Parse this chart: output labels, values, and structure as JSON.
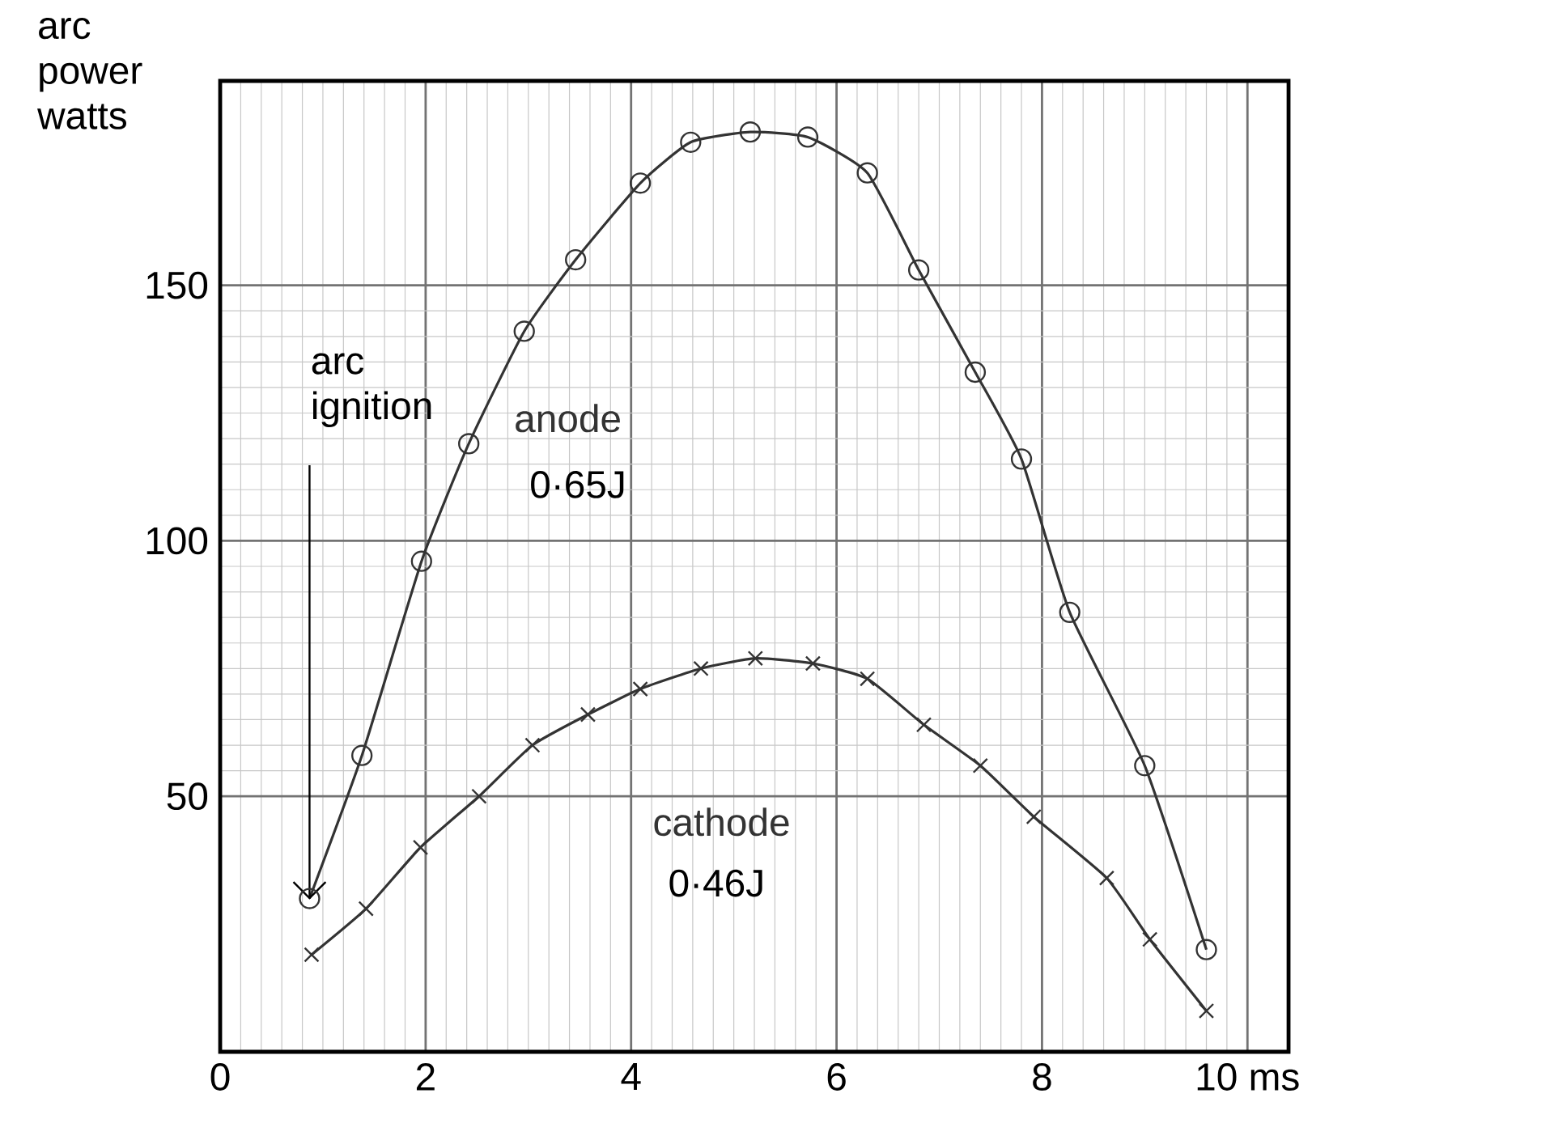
{
  "chart_data": {
    "type": "line",
    "ylabel": "arc power watts",
    "xlim": [
      0,
      10.4
    ],
    "ylim": [
      0,
      190
    ],
    "xticks": [
      0,
      2,
      4,
      6,
      8,
      {
        "value": 10,
        "label": "10 ms"
      }
    ],
    "yticks": [
      50,
      100,
      150
    ],
    "grid": true,
    "legend": false,
    "line_style": "solid",
    "series": [
      {
        "name": "anode",
        "color": "#333333",
        "marker": "circle",
        "x": [
          0.87,
          1.38,
          1.96,
          2.42,
          2.96,
          3.46,
          4.09,
          4.58,
          5.16,
          5.72,
          6.3,
          6.8,
          7.35,
          7.8,
          8.27,
          9.0,
          9.6
        ],
        "values": [
          30,
          58,
          96,
          119,
          141,
          155,
          170,
          178,
          180,
          179,
          172,
          153,
          133,
          116,
          86,
          56,
          20
        ]
      },
      {
        "name": "cathode",
        "color": "#333333",
        "marker": "cross",
        "x": [
          0.89,
          1.42,
          1.95,
          2.52,
          3.04,
          3.58,
          4.09,
          4.68,
          5.21,
          5.77,
          6.3,
          6.85,
          7.4,
          7.92,
          8.63,
          9.05,
          9.6
        ],
        "values": [
          19,
          28,
          40,
          50,
          60,
          66,
          71,
          75,
          77,
          76,
          73,
          64,
          56,
          46,
          34,
          22,
          8
        ]
      }
    ],
    "annotations": [
      {
        "text": "arc ignition",
        "x": 0.87,
        "y": 30
      },
      "0·65J",
      "0·46J"
    ]
  }
}
